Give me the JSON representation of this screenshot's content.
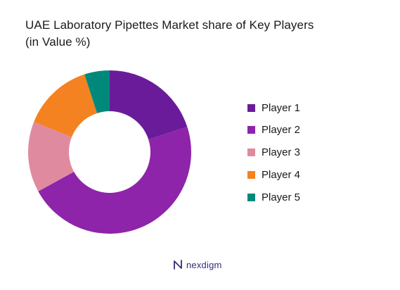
{
  "title_lines": [
    "UAE Laboratory Pipettes Market share of Key Players",
    "(in Value %)"
  ],
  "chart_data": {
    "type": "pie",
    "donut": true,
    "title": "UAE Laboratory Pipettes Market share of Key Players (in Value %)",
    "categories": [
      "Player 1",
      "Player 2",
      "Player 3",
      "Player 4",
      "Player 5"
    ],
    "values": [
      20,
      47,
      14,
      14,
      5
    ],
    "colors": [
      "#6a1b9a",
      "#8e24aa",
      "#e08aa0",
      "#f58220",
      "#00897b"
    ],
    "legend_position": "right"
  },
  "logo": {
    "text": "nexdigm",
    "icon": "nexdigm-logo-icon"
  }
}
